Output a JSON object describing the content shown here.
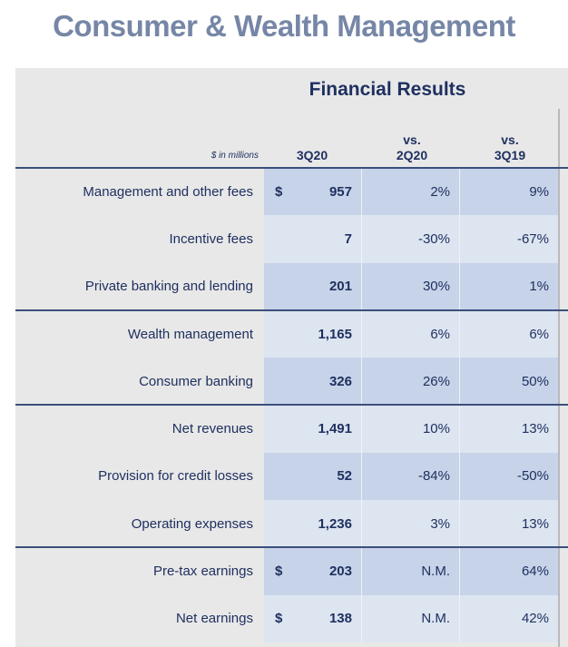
{
  "title": "Consumer & Wealth Management",
  "panel_title": "Financial Results",
  "units_label": "$ in millions",
  "columns": {
    "current": "3Q20",
    "vs_prior_q_line1": "vs.",
    "vs_prior_q_line2": "2Q20",
    "vs_prior_y_line1": "vs.",
    "vs_prior_y_line2": "3Q19"
  },
  "rows": [
    {
      "label": "Management and other fees",
      "dollar": "$",
      "value": "957",
      "vs_q": "2%",
      "vs_y": "9%"
    },
    {
      "label": "Incentive fees",
      "dollar": "",
      "value": "7",
      "vs_q": "-30%",
      "vs_y": "-67%"
    },
    {
      "label": "Private banking and lending",
      "dollar": "",
      "value": "201",
      "vs_q": "30%",
      "vs_y": "1%"
    },
    {
      "label": "Wealth management",
      "dollar": "",
      "value": "1,165",
      "vs_q": "6%",
      "vs_y": "6%"
    },
    {
      "label": "Consumer banking",
      "dollar": "",
      "value": "326",
      "vs_q": "26%",
      "vs_y": "50%"
    },
    {
      "label": "Net revenues",
      "dollar": "",
      "value": "1,491",
      "vs_q": "10%",
      "vs_y": "13%"
    },
    {
      "label": "Provision for credit losses",
      "dollar": "",
      "value": "52",
      "vs_q": "-84%",
      "vs_y": "-50%"
    },
    {
      "label": "Operating expenses",
      "dollar": "",
      "value": "1,236",
      "vs_q": "3%",
      "vs_y": "13%"
    },
    {
      "label": "Pre-tax earnings",
      "dollar": "$",
      "value": "203",
      "vs_q": "N.M.",
      "vs_y": "64%"
    },
    {
      "label": "Net earnings",
      "dollar": "$",
      "value": "138",
      "vs_q": "N.M.",
      "vs_y": "42%"
    }
  ],
  "colors": {
    "title": "#7686a6",
    "text": "#1f3060",
    "band_dark": "#c7d3e8",
    "band_light": "#dde5f1",
    "panel_bg": "#e8e8e8"
  }
}
